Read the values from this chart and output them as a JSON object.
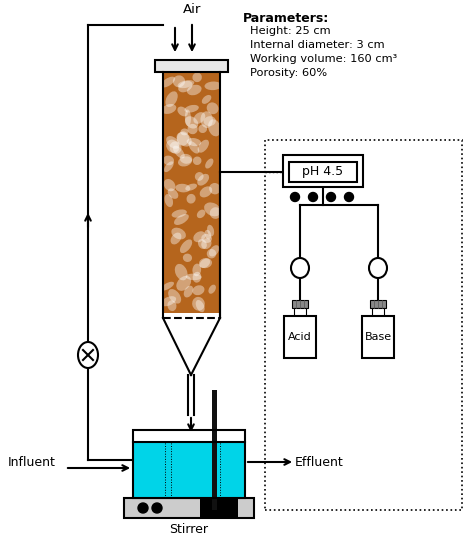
{
  "bg_color": "#ffffff",
  "params_title": "Parameters:",
  "params": [
    "Height: 25 cm",
    "Internal diameter: 3 cm",
    "Working volume: 160 cm³",
    "Porosity: 60%"
  ],
  "labels": {
    "air": "Air",
    "influent": "Influent",
    "effluent": "Effluent",
    "stirrer": "Stirrer",
    "ph": "pH 4.5",
    "acid": "Acid",
    "base": "Base"
  },
  "colors": {
    "reactor_fill": "#b5651d",
    "liquid_fill": "#00d4e8",
    "line": "#000000",
    "white": "#ffffff",
    "probe": "#111111",
    "cap_gray": "#888888",
    "stirrer_gray": "#cccccc"
  }
}
